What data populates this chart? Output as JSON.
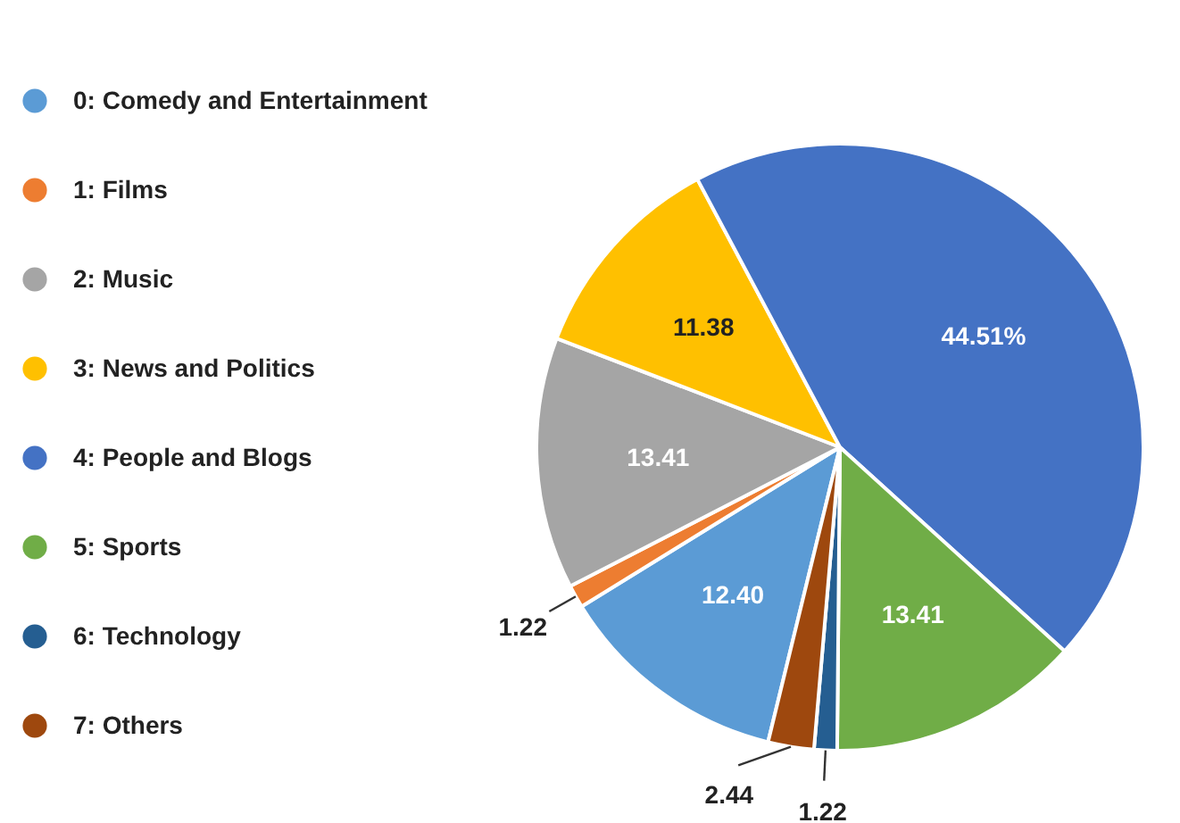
{
  "chart_data": {
    "type": "pie",
    "categories": [
      "0: Comedy and Entertainment",
      "1: Films",
      "2: Music",
      "3: News and Politics",
      "4: People and Blogs",
      "5: Sports",
      "6: Technology",
      "7: Others"
    ],
    "values": [
      12.4,
      1.22,
      13.41,
      11.38,
      44.51,
      13.41,
      1.22,
      2.44
    ],
    "colors": [
      "#5b9bd5",
      "#ed7d31",
      "#a5a5a5",
      "#ffc000",
      "#4472c4",
      "#70ad47",
      "#255e91",
      "#9e480e"
    ],
    "value_labels": [
      "12.40",
      "1.22",
      "13.41",
      "11.38",
      "44.51%",
      "13.41",
      "1.22",
      "2.44"
    ],
    "legend": "left"
  }
}
